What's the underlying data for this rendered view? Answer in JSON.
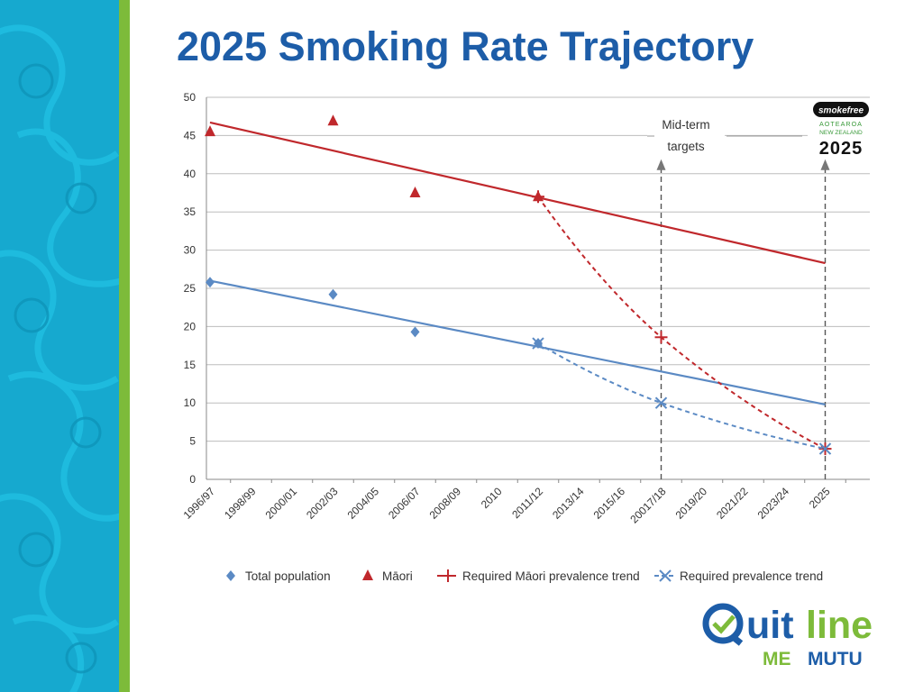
{
  "slide": {
    "title": "2025 Smoking Rate Trajectory"
  },
  "colors": {
    "title": "#1d5da8",
    "left_band": "#16a9cf",
    "accent_stripe": "#7dbb3a",
    "maori_series": "#c0282c",
    "total_series": "#5b8ac4"
  },
  "logos": {
    "smokefree": {
      "badge": "smokefree",
      "line1": "AOTEAROA",
      "line2": "NEW ZEALAND",
      "year": "2025"
    },
    "quitline": {
      "word": "Quitline",
      "sub1": "ME",
      "sub2": "MUTU"
    }
  },
  "chart_data": {
    "type": "scatter",
    "categories": [
      "1996/97",
      "1998/99",
      "2000/01",
      "2002/03",
      "2004/05",
      "2006/07",
      "2008/09",
      "2010",
      "2011/12",
      "2013/14",
      "2015/16",
      "20017/18",
      "2019/20",
      "2021/22",
      "2023/24",
      "2025"
    ],
    "ylim": [
      0,
      50
    ],
    "yticks": [
      0,
      5,
      10,
      15,
      20,
      25,
      30,
      35,
      40,
      45,
      50
    ],
    "grid": true,
    "legend_position": "bottom",
    "series": [
      {
        "name": "Total population",
        "marker": "diamond",
        "color": "#5b8ac4",
        "points": [
          {
            "x": "1996/97",
            "y": 25.8
          },
          {
            "x": "2002/03",
            "y": 24.2
          },
          {
            "x": "2006/07",
            "y": 19.3
          },
          {
            "x": "2011/12",
            "y": 17.8
          }
        ]
      },
      {
        "name": "Māori",
        "marker": "triangle",
        "color": "#c0282c",
        "points": [
          {
            "x": "1996/97",
            "y": 45.5
          },
          {
            "x": "2002/03",
            "y": 46.9
          },
          {
            "x": "2006/07",
            "y": 37.5
          },
          {
            "x": "2011/12",
            "y": 37.0
          }
        ]
      },
      {
        "name": "Required Māori prevalence trend",
        "marker": "plus",
        "style": "dashed",
        "color": "#c0282c",
        "points": [
          {
            "x": "2011/12",
            "y": 37.0
          },
          {
            "x": "20017/18",
            "y": 18.6
          },
          {
            "x": "2025",
            "y": 4.0
          }
        ]
      },
      {
        "name": "Required prevalence trend",
        "marker": "x",
        "style": "dashed",
        "color": "#5b8ac4",
        "points": [
          {
            "x": "2011/12",
            "y": 17.8
          },
          {
            "x": "20017/18",
            "y": 10.0
          },
          {
            "x": "2025",
            "y": 4.0
          }
        ]
      }
    ],
    "trendlines": [
      {
        "color": "#c0282c",
        "from": {
          "x": "1996/97",
          "y": 46.7
        },
        "to": {
          "x": "2025",
          "y": 28.3
        }
      },
      {
        "color": "#5b8ac4",
        "from": {
          "x": "1996/97",
          "y": 26.0
        },
        "to": {
          "x": "2025",
          "y": 9.8
        }
      }
    ],
    "annotation": {
      "text_lines": [
        "Mid-term",
        "targets"
      ],
      "arrows_at": [
        "20017/18",
        "2025"
      ]
    }
  }
}
